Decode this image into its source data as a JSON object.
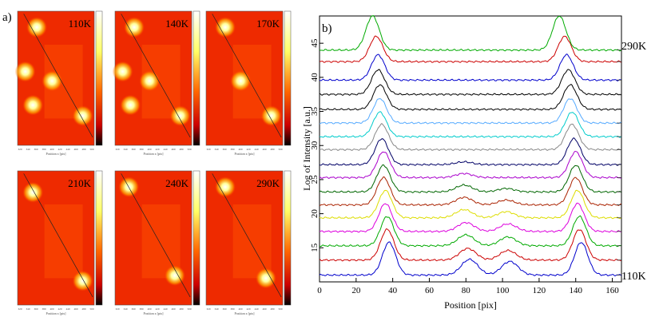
{
  "panel_a": {
    "label": "a)",
    "frames": [
      {
        "temperature": "110K",
        "spots": [
          [
            0.25,
            0.12
          ],
          [
            0.1,
            0.45
          ],
          [
            0.45,
            0.52
          ],
          [
            0.2,
            0.7
          ],
          [
            0.85,
            0.78
          ]
        ]
      },
      {
        "temperature": "140K",
        "spots": [
          [
            0.25,
            0.12
          ],
          [
            0.1,
            0.45
          ],
          [
            0.45,
            0.52
          ],
          [
            0.2,
            0.7
          ],
          [
            0.85,
            0.78
          ]
        ]
      },
      {
        "temperature": "170K",
        "spots": [
          [
            0.25,
            0.12
          ],
          [
            0.45,
            0.52
          ],
          [
            0.85,
            0.78
          ]
        ]
      },
      {
        "temperature": "210K",
        "spots": [
          [
            0.2,
            0.16
          ],
          [
            0.85,
            0.82
          ]
        ]
      },
      {
        "temperature": "240K",
        "spots": [
          [
            0.18,
            0.12
          ],
          [
            0.78,
            0.78
          ]
        ]
      },
      {
        "temperature": "290K",
        "spots": [
          [
            0.25,
            0.12
          ],
          [
            0.78,
            0.8
          ]
        ]
      }
    ],
    "xlabel": "Position x [pix]",
    "xticks": [
      "320",
      "340",
      "360",
      "380",
      "400",
      "420",
      "440",
      "460",
      "480",
      "500"
    ]
  },
  "chart_data": {
    "type": "line",
    "label": "b)",
    "xlabel": "Position [pix]",
    "ylabel": "Log of Intensity [a.u.]",
    "xlim": [
      0,
      165
    ],
    "ylim": [
      10,
      49
    ],
    "xticks": [
      0,
      20,
      40,
      60,
      80,
      100,
      120,
      140,
      160
    ],
    "yticks": [
      15,
      20,
      25,
      30,
      35,
      40,
      45
    ],
    "annotations": [
      {
        "text": "290K",
        "position": "top-right"
      },
      {
        "text": "110K",
        "position": "bottom-right"
      }
    ],
    "series": [
      {
        "color": "#0000cc",
        "baseline": 11.0,
        "peaks": [
          [
            38,
            4.8
          ],
          [
            82,
            2.3
          ],
          [
            104,
            2.0
          ],
          [
            143,
            4.8
          ]
        ]
      },
      {
        "color": "#cc0000",
        "baseline": 13.2,
        "peaks": [
          [
            37,
            4.5
          ],
          [
            81,
            1.7
          ],
          [
            103,
            1.4
          ],
          [
            142,
            4.5
          ]
        ]
      },
      {
        "color": "#00aa00",
        "baseline": 15.3,
        "peaks": [
          [
            37,
            4.3
          ],
          [
            80,
            1.6
          ],
          [
            103,
            1.3
          ],
          [
            142,
            4.3
          ]
        ]
      },
      {
        "color": "#dd00dd",
        "baseline": 17.4,
        "peaks": [
          [
            36,
            4.1
          ],
          [
            80,
            1.3
          ],
          [
            103,
            1.1
          ],
          [
            141,
            4.1
          ]
        ]
      },
      {
        "color": "#dddd00",
        "baseline": 19.4,
        "peaks": [
          [
            36,
            4.0
          ],
          [
            79,
            1.2
          ],
          [
            102,
            0.9
          ],
          [
            141,
            4.0
          ]
        ]
      },
      {
        "color": "#aa2200",
        "baseline": 21.3,
        "peaks": [
          [
            35,
            4.0
          ],
          [
            79,
            1.1
          ],
          [
            102,
            0.7
          ],
          [
            140,
            4.0
          ]
        ]
      },
      {
        "color": "#006600",
        "baseline": 23.2,
        "peaks": [
          [
            35,
            3.9
          ],
          [
            79,
            1.0
          ],
          [
            102,
            0.5
          ],
          [
            140,
            3.9
          ]
        ]
      },
      {
        "color": "#aa00cc",
        "baseline": 25.3,
        "peaks": [
          [
            35,
            3.8
          ],
          [
            79,
            0.6
          ],
          [
            140,
            3.8
          ]
        ]
      },
      {
        "color": "#000066",
        "baseline": 27.2,
        "peaks": [
          [
            34,
            3.8
          ],
          [
            79,
            0.4
          ],
          [
            139,
            3.8
          ]
        ]
      },
      {
        "color": "#888888",
        "baseline": 29.4,
        "peaks": [
          [
            34,
            3.7
          ],
          [
            138,
            3.7
          ]
        ]
      },
      {
        "color": "#00cccc",
        "baseline": 31.3,
        "peaks": [
          [
            33,
            3.6
          ],
          [
            138,
            3.6
          ]
        ]
      },
      {
        "color": "#55aaff",
        "baseline": 33.3,
        "peaks": [
          [
            33,
            3.6
          ],
          [
            137,
            3.6
          ]
        ]
      },
      {
        "color": "#000000",
        "baseline": 35.3,
        "peaks": [
          [
            33,
            3.6
          ],
          [
            137,
            3.6
          ]
        ]
      },
      {
        "color": "#000000",
        "baseline": 37.5,
        "peaks": [
          [
            32,
            3.6
          ],
          [
            136,
            3.6
          ]
        ]
      },
      {
        "color": "#0000cc",
        "baseline": 39.6,
        "peaks": [
          [
            32,
            3.7
          ],
          [
            135,
            3.7
          ]
        ]
      },
      {
        "color": "#cc0000",
        "baseline": 42.3,
        "peaks": [
          [
            31,
            3.7
          ],
          [
            134,
            3.7
          ]
        ]
      },
      {
        "color": "#00aa00",
        "baseline": 44.0,
        "peaks": [
          [
            29,
            5.0
          ],
          [
            131,
            5.0
          ]
        ]
      }
    ]
  }
}
